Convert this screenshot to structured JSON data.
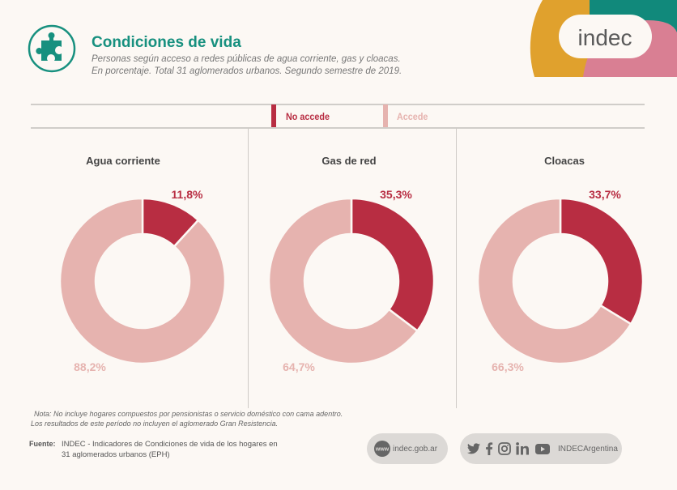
{
  "header": {
    "title": "Condiciones de vida",
    "subtitle_line1": "Personas según acceso a redes públicas de agua corriente, gas y cloacas.",
    "subtitle_line2": "En porcentaje. Total 31 aglomerados urbanos. Segundo semestre de 2019.",
    "icon": "puzzle-piece-icon"
  },
  "logo": {
    "text": "indec"
  },
  "colors": {
    "no_accede": "#b82d42",
    "accede": "#e6b3af",
    "title": "#17907f",
    "logo_orange": "#e0a12d",
    "logo_teal": "#11897b",
    "logo_pink": "#d97f93"
  },
  "legend": {
    "items": [
      {
        "label": "No accede",
        "color": "#b82d42"
      },
      {
        "label": "Accede",
        "color": "#e6b3af"
      }
    ]
  },
  "chart_data": [
    {
      "type": "pie",
      "donut": true,
      "title": "Agua corriente",
      "slices": [
        {
          "name": "No accede",
          "value": 11.8,
          "label": "11,8%",
          "color": "#b82d42"
        },
        {
          "name": "Accede",
          "value": 88.2,
          "label": "88,2%",
          "color": "#e6b3af"
        }
      ]
    },
    {
      "type": "pie",
      "donut": true,
      "title": "Gas de red",
      "slices": [
        {
          "name": "No accede",
          "value": 35.3,
          "label": "35,3%",
          "color": "#b82d42"
        },
        {
          "name": "Accede",
          "value": 64.7,
          "label": "64,7%",
          "color": "#e6b3af"
        }
      ]
    },
    {
      "type": "pie",
      "donut": true,
      "title": "Cloacas",
      "slices": [
        {
          "name": "No accede",
          "value": 33.7,
          "label": "33,7%",
          "color": "#b82d42"
        },
        {
          "name": "Accede",
          "value": 66.3,
          "label": "66,3%",
          "color": "#e6b3af"
        }
      ]
    }
  ],
  "footer": {
    "nota_line1": "Nota: No incluye hogares compuestos por pensionistas o servicio doméstico con cama adentro.",
    "nota_line2": "Los resultados de este período no incluyen el aglomerado Gran Resistencia.",
    "fuente_label": "Fuente:",
    "fuente_line1": "INDEC - Indicadores de Condiciones de vida de los hogares en",
    "fuente_line2": "31 aglomerados urbanos (EPH)",
    "web": {
      "icon_text": "www",
      "text": "indec.gob.ar"
    },
    "social": {
      "icons": [
        "twitter-icon",
        "facebook-icon",
        "instagram-icon",
        "linkedin-icon",
        "youtube-icon"
      ],
      "handle": "INDECArgentina"
    }
  }
}
